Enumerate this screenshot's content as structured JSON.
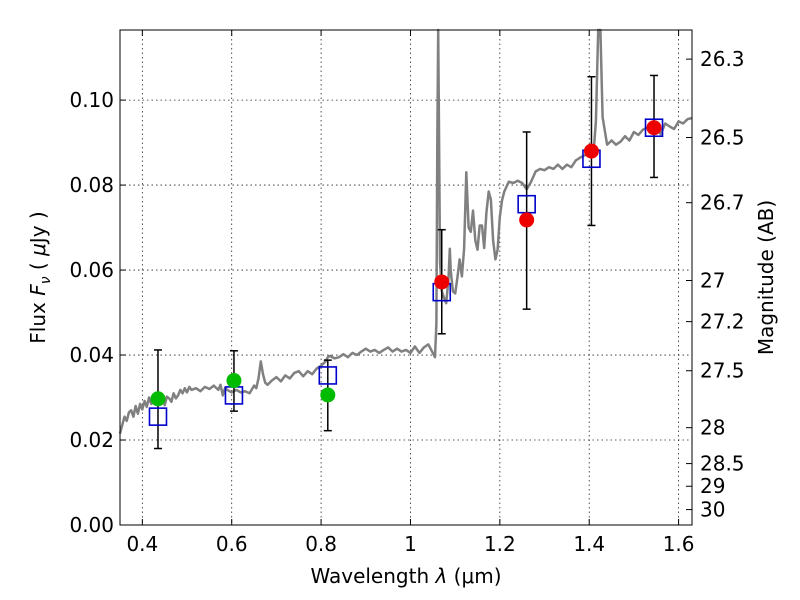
{
  "chart_data": {
    "type": "scatter",
    "title": "",
    "xlabel": "Wavelength  λ (μm)",
    "ylabel": "Flux  F_ν  ( μJy )",
    "ylabel_parts": {
      "prefix": "Flux  ",
      "symbol": "F",
      "subscript": "ν",
      "unit_open": "  ( ",
      "mu": "μ",
      "unit_rest": "Jy )"
    },
    "xlabel_parts": {
      "prefix": "Wavelength  ",
      "symbol": "λ",
      "unit": " (μm)"
    },
    "y2label": "Magnitude (AB)",
    "xlim": [
      0.35,
      1.63
    ],
    "ylim": [
      0.0,
      0.1165
    ],
    "grid": true,
    "x_ticks": [
      {
        "v": 0.4,
        "label": "0.4"
      },
      {
        "v": 0.6,
        "label": "0.6"
      },
      {
        "v": 0.8,
        "label": "0.8"
      },
      {
        "v": 1.0,
        "label": "1"
      },
      {
        "v": 1.2,
        "label": "1.2"
      },
      {
        "v": 1.4,
        "label": "1.4"
      },
      {
        "v": 1.6,
        "label": "1.6"
      }
    ],
    "y_ticks": [
      {
        "v": 0.0,
        "label": "0.00"
      },
      {
        "v": 0.02,
        "label": "0.02"
      },
      {
        "v": 0.04,
        "label": "0.04"
      },
      {
        "v": 0.06,
        "label": "0.06"
      },
      {
        "v": 0.08,
        "label": "0.08"
      },
      {
        "v": 0.1,
        "label": "0.10"
      }
    ],
    "mag_ticks": [
      {
        "mag": 26.3,
        "label": "26.3"
      },
      {
        "mag": 26.5,
        "label": "26.5"
      },
      {
        "mag": 26.7,
        "label": "26.7"
      },
      {
        "mag": 27.0,
        "label": "27"
      },
      {
        "mag": 27.2,
        "label": "27.2"
      },
      {
        "mag": 27.5,
        "label": "27.5"
      },
      {
        "mag": 28.0,
        "label": "28"
      },
      {
        "mag": 28.5,
        "label": "28.5"
      },
      {
        "mag": 29.0,
        "label": "29"
      },
      {
        "mag": 30.0,
        "label": "30"
      }
    ],
    "model_spectrum": {
      "color": "#808080",
      "points": [
        [
          0.35,
          0.0215
        ],
        [
          0.355,
          0.0235
        ],
        [
          0.36,
          0.0255
        ],
        [
          0.365,
          0.0245
        ],
        [
          0.37,
          0.0265
        ],
        [
          0.375,
          0.027
        ],
        [
          0.38,
          0.0255
        ],
        [
          0.385,
          0.028
        ],
        [
          0.39,
          0.0262
        ],
        [
          0.395,
          0.0285
        ],
        [
          0.4,
          0.0272
        ],
        [
          0.405,
          0.0292
        ],
        [
          0.41,
          0.0278
        ],
        [
          0.415,
          0.03
        ],
        [
          0.42,
          0.0285
        ],
        [
          0.425,
          0.03
        ],
        [
          0.43,
          0.0292
        ],
        [
          0.435,
          0.0288
        ],
        [
          0.44,
          0.0295
        ],
        [
          0.445,
          0.0305
        ],
        [
          0.45,
          0.0282
        ],
        [
          0.455,
          0.0302
        ],
        [
          0.46,
          0.0298
        ],
        [
          0.465,
          0.029
        ],
        [
          0.47,
          0.031
        ],
        [
          0.475,
          0.0298
        ],
        [
          0.48,
          0.0305
        ],
        [
          0.485,
          0.0318
        ],
        [
          0.49,
          0.031
        ],
        [
          0.495,
          0.0322
        ],
        [
          0.5,
          0.0312
        ],
        [
          0.505,
          0.0325
        ],
        [
          0.51,
          0.0318
        ],
        [
          0.52,
          0.0322
        ],
        [
          0.53,
          0.0315
        ],
        [
          0.54,
          0.0325
        ],
        [
          0.55,
          0.032
        ],
        [
          0.56,
          0.0328
        ],
        [
          0.57,
          0.0318
        ],
        [
          0.575,
          0.033
        ],
        [
          0.58,
          0.0305
        ],
        [
          0.585,
          0.0322
        ],
        [
          0.59,
          0.0318
        ],
        [
          0.6,
          0.0312
        ],
        [
          0.61,
          0.0318
        ],
        [
          0.62,
          0.0312
        ],
        [
          0.63,
          0.0315
        ],
        [
          0.64,
          0.031
        ],
        [
          0.65,
          0.0328
        ],
        [
          0.655,
          0.0322
        ],
        [
          0.66,
          0.0345
        ],
        [
          0.665,
          0.0385
        ],
        [
          0.67,
          0.0355
        ],
        [
          0.675,
          0.0335
        ],
        [
          0.68,
          0.033
        ],
        [
          0.69,
          0.034
        ],
        [
          0.7,
          0.0348
        ],
        [
          0.71,
          0.0338
        ],
        [
          0.72,
          0.0352
        ],
        [
          0.73,
          0.0345
        ],
        [
          0.74,
          0.0358
        ],
        [
          0.75,
          0.0362
        ],
        [
          0.76,
          0.035
        ],
        [
          0.77,
          0.0362
        ],
        [
          0.78,
          0.0355
        ],
        [
          0.79,
          0.0368
        ],
        [
          0.8,
          0.0375
        ],
        [
          0.81,
          0.0385
        ],
        [
          0.815,
          0.0395
        ],
        [
          0.82,
          0.0398
        ],
        [
          0.83,
          0.0392
        ],
        [
          0.84,
          0.0395
        ],
        [
          0.85,
          0.0402
        ],
        [
          0.86,
          0.0395
        ],
        [
          0.87,
          0.0405
        ],
        [
          0.88,
          0.04
        ],
        [
          0.89,
          0.0408
        ],
        [
          0.9,
          0.0415
        ],
        [
          0.91,
          0.0408
        ],
        [
          0.92,
          0.0412
        ],
        [
          0.93,
          0.0405
        ],
        [
          0.94,
          0.0412
        ],
        [
          0.95,
          0.0418
        ],
        [
          0.96,
          0.0408
        ],
        [
          0.97,
          0.0415
        ],
        [
          0.98,
          0.0408
        ],
        [
          0.99,
          0.0412
        ],
        [
          1.0,
          0.0405
        ],
        [
          1.01,
          0.042
        ],
        [
          1.02,
          0.0405
        ],
        [
          1.03,
          0.0418
        ],
        [
          1.04,
          0.0425
        ],
        [
          1.045,
          0.0415
        ],
        [
          1.05,
          0.0405
        ],
        [
          1.055,
          0.0395
        ],
        [
          1.058,
          0.0475
        ],
        [
          1.06,
          0.09
        ],
        [
          1.062,
          0.118
        ],
        [
          1.064,
          0.09
        ],
        [
          1.066,
          0.062
        ],
        [
          1.07,
          0.055
        ],
        [
          1.075,
          0.0535
        ],
        [
          1.08,
          0.0522
        ],
        [
          1.085,
          0.058
        ],
        [
          1.088,
          0.065
        ],
        [
          1.09,
          0.06
        ],
        [
          1.095,
          0.055
        ],
        [
          1.1,
          0.0545
        ],
        [
          1.105,
          0.0582
        ],
        [
          1.11,
          0.0625
        ],
        [
          1.115,
          0.0585
        ],
        [
          1.12,
          0.065
        ],
        [
          1.125,
          0.083
        ],
        [
          1.13,
          0.07
        ],
        [
          1.135,
          0.069
        ],
        [
          1.14,
          0.074
        ],
        [
          1.145,
          0.067
        ],
        [
          1.15,
          0.0648
        ],
        [
          1.155,
          0.0705
        ],
        [
          1.16,
          0.0705
        ],
        [
          1.165,
          0.0652
        ],
        [
          1.17,
          0.0735
        ],
        [
          1.175,
          0.0785
        ],
        [
          1.18,
          0.0765
        ],
        [
          1.185,
          0.067
        ],
        [
          1.19,
          0.0625
        ],
        [
          1.195,
          0.0648
        ],
        [
          1.2,
          0.0725
        ],
        [
          1.205,
          0.0765
        ],
        [
          1.21,
          0.0785
        ],
        [
          1.22,
          0.0808
        ],
        [
          1.23,
          0.0805
        ],
        [
          1.24,
          0.081
        ],
        [
          1.25,
          0.0805
        ],
        [
          1.26,
          0.079
        ],
        [
          1.27,
          0.0808
        ],
        [
          1.28,
          0.0832
        ],
        [
          1.29,
          0.0838
        ],
        [
          1.3,
          0.0835
        ],
        [
          1.31,
          0.0842
        ],
        [
          1.32,
          0.0838
        ],
        [
          1.33,
          0.0848
        ],
        [
          1.34,
          0.0838
        ],
        [
          1.35,
          0.0848
        ],
        [
          1.36,
          0.0842
        ],
        [
          1.37,
          0.0858
        ],
        [
          1.38,
          0.0865
        ],
        [
          1.39,
          0.087
        ],
        [
          1.4,
          0.0875
        ],
        [
          1.405,
          0.0872
        ],
        [
          1.41,
          0.088
        ],
        [
          1.415,
          0.095
        ],
        [
          1.42,
          0.1165
        ],
        [
          1.425,
          0.1165
        ],
        [
          1.43,
          0.096
        ],
        [
          1.44,
          0.0895
        ],
        [
          1.45,
          0.0905
        ],
        [
          1.46,
          0.0895
        ],
        [
          1.47,
          0.0902
        ],
        [
          1.48,
          0.0915
        ],
        [
          1.49,
          0.0905
        ],
        [
          1.5,
          0.0925
        ],
        [
          1.51,
          0.0918
        ],
        [
          1.52,
          0.093
        ],
        [
          1.53,
          0.0935
        ],
        [
          1.54,
          0.0928
        ],
        [
          1.55,
          0.0935
        ],
        [
          1.56,
          0.092
        ],
        [
          1.57,
          0.0945
        ],
        [
          1.58,
          0.0938
        ],
        [
          1.59,
          0.0932
        ],
        [
          1.6,
          0.095
        ],
        [
          1.61,
          0.0945
        ],
        [
          1.62,
          0.0955
        ],
        [
          1.63,
          0.0958
        ]
      ]
    },
    "model_photometry": {
      "color": "#0000cc",
      "marker": "open-square",
      "points": [
        {
          "x": 0.435,
          "y": 0.0255
        },
        {
          "x": 0.605,
          "y": 0.0305
        },
        {
          "x": 0.815,
          "y": 0.0352
        },
        {
          "x": 1.07,
          "y": 0.0548
        },
        {
          "x": 1.26,
          "y": 0.0755
        },
        {
          "x": 1.405,
          "y": 0.0862
        },
        {
          "x": 1.545,
          "y": 0.0935
        }
      ]
    },
    "observed_optical": {
      "color": "#00bb00",
      "marker": "filled-circle",
      "points": [
        {
          "x": 0.435,
          "y": 0.0297,
          "yerr_lo": 0.018,
          "yerr_hi": 0.0412
        },
        {
          "x": 0.605,
          "y": 0.034,
          "yerr_lo": 0.0268,
          "yerr_hi": 0.041
        },
        {
          "x": 0.815,
          "y": 0.0306,
          "yerr_lo": 0.0222,
          "yerr_hi": 0.0388
        }
      ]
    },
    "observed_nir": {
      "color": "#ee0000",
      "marker": "filled-circle",
      "points": [
        {
          "x": 1.07,
          "y": 0.0572,
          "yerr_lo": 0.045,
          "yerr_hi": 0.0695
        },
        {
          "x": 1.26,
          "y": 0.0718,
          "yerr_lo": 0.0508,
          "yerr_hi": 0.0925
        },
        {
          "x": 1.405,
          "y": 0.088,
          "yerr_lo": 0.0705,
          "yerr_hi": 0.1055
        },
        {
          "x": 1.545,
          "y": 0.0935,
          "yerr_lo": 0.0818,
          "yerr_hi": 0.1058
        }
      ]
    }
  }
}
